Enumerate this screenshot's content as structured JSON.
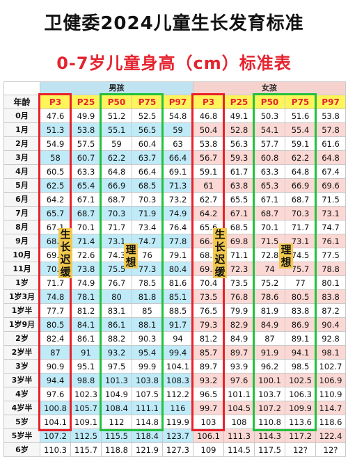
{
  "title_line1": "卫健委2024儿童生长发育标准",
  "title_line2": "0-7岁儿童身高（cm）标准表",
  "table": {
    "age_header": "年龄",
    "boys_label": "男孩",
    "girls_label": "女孩",
    "percentile_headers": [
      "P3",
      "P25",
      "P50",
      "P75",
      "P97"
    ],
    "rows": [
      {
        "age": "0月",
        "boys": [
          "47.6",
          "49.9",
          "51.2",
          "52.5",
          "54.8"
        ],
        "girls": [
          "46.8",
          "49.1",
          "50.3",
          "51.6",
          "53.8"
        ]
      },
      {
        "age": "1月",
        "boys": [
          "51.3",
          "53.8",
          "55.1",
          "56.5",
          "59"
        ],
        "girls": [
          "50.4",
          "52.8",
          "54.1",
          "55.4",
          "57.8"
        ]
      },
      {
        "age": "2月",
        "boys": [
          "54.9",
          "57.5",
          "59",
          "60.4",
          "63"
        ],
        "girls": [
          "53.8",
          "56.3",
          "57.7",
          "59.1",
          "61.6"
        ]
      },
      {
        "age": "3月",
        "boys": [
          "58",
          "60.7",
          "62.2",
          "63.7",
          "66.4"
        ],
        "girls": [
          "56.7",
          "59.3",
          "60.8",
          "62.2",
          "64.8"
        ]
      },
      {
        "age": "4月",
        "boys": [
          "60.5",
          "63.3",
          "64.8",
          "66.4",
          "69.1"
        ],
        "girls": [
          "59.1",
          "61.7",
          "63.3",
          "64.8",
          "67.4"
        ]
      },
      {
        "age": "5月",
        "boys": [
          "62.5",
          "65.4",
          "66.9",
          "68.5",
          "71.3"
        ],
        "girls": [
          "61",
          "63.8",
          "65.3",
          "66.9",
          "69.6"
        ]
      },
      {
        "age": "6月",
        "boys": [
          "64.2",
          "67.1",
          "68.7",
          "70.3",
          "73.2"
        ],
        "girls": [
          "62.7",
          "65.5",
          "67.1",
          "68.7",
          "71.5"
        ]
      },
      {
        "age": "7月",
        "boys": [
          "65.7",
          "68.7",
          "70.3",
          "71.9",
          "74.9"
        ],
        "girls": [
          "64.2",
          "67.1",
          "68.7",
          "70.3",
          "73.1"
        ]
      },
      {
        "age": "8月",
        "boys": [
          "67.1",
          "70.1",
          "71.7",
          "73.4",
          "76.4"
        ],
        "girls": [
          "65.6",
          "68.5",
          "70.1",
          "71.7",
          "74.7"
        ]
      },
      {
        "age": "9月",
        "boys": [
          "68.3",
          "71.4",
          "73.1",
          "74.7",
          "77.8"
        ],
        "girls": [
          "66.8",
          "69.8",
          "71.5",
          "73.1",
          "76.1"
        ]
      },
      {
        "age": "10月",
        "boys": [
          "69.5",
          "72.6",
          "74.3",
          "76",
          "79.1"
        ],
        "girls": [
          "68.1",
          "71.1",
          "72.8",
          "74.5",
          "77.5"
        ]
      },
      {
        "age": "11月",
        "boys": [
          "70.7",
          "73.8",
          "75.5",
          "77.3",
          "80.4"
        ],
        "girls": [
          "69.2",
          "72.3",
          "74",
          "75.7",
          "78.8"
        ]
      },
      {
        "age": "1岁",
        "boys": [
          "71.7",
          "74.9",
          "76.7",
          "78.5",
          "81.6"
        ],
        "girls": [
          "70.4",
          "73.5",
          "75.2",
          "77",
          "80.1"
        ]
      },
      {
        "age": "1岁3月",
        "boys": [
          "74.8",
          "78.1",
          "80",
          "81.8",
          "85.1"
        ],
        "girls": [
          "73.5",
          "76.8",
          "78.6",
          "80.5",
          "83.8"
        ]
      },
      {
        "age": "1岁半",
        "boys": [
          "77.7",
          "81.2",
          "83.1",
          "85",
          "88.5"
        ],
        "girls": [
          "76.5",
          "79.9",
          "81.9",
          "83.8",
          "87.2"
        ]
      },
      {
        "age": "1岁9月",
        "boys": [
          "80.5",
          "84.1",
          "86.1",
          "88.1",
          "91.7"
        ],
        "girls": [
          "79.3",
          "82.9",
          "84.9",
          "86.9",
          "90.4"
        ]
      },
      {
        "age": "2岁",
        "boys": [
          "82.4",
          "86.1",
          "88.2",
          "90.3",
          "94"
        ],
        "girls": [
          "81.2",
          "84.9",
          "87",
          "89.1",
          "92.8"
        ]
      },
      {
        "age": "2岁半",
        "boys": [
          "87",
          "91",
          "93.2",
          "95.4",
          "99.4"
        ],
        "girls": [
          "85.7",
          "89.7",
          "91.9",
          "94.1",
          "98.1"
        ]
      },
      {
        "age": "3岁",
        "boys": [
          "90.9",
          "95.1",
          "97.5",
          "99.9",
          "104.1"
        ],
        "girls": [
          "89.7",
          "93.9",
          "96.2",
          "98.5",
          "102.7"
        ]
      },
      {
        "age": "3岁半",
        "boys": [
          "94.4",
          "98.8",
          "101.3",
          "103.8",
          "108.3"
        ],
        "girls": [
          "93.2",
          "97.6",
          "100.1",
          "102.5",
          "106.9"
        ]
      },
      {
        "age": "4岁",
        "boys": [
          "97.6",
          "102.3",
          "104.9",
          "107.5",
          "112.2"
        ],
        "girls": [
          "96.5",
          "101.1",
          "103.7",
          "106.3",
          "110.9"
        ]
      },
      {
        "age": "4岁半",
        "boys": [
          "100.8",
          "105.7",
          "108.4",
          "111.1",
          "116"
        ],
        "girls": [
          "99.7",
          "104.5",
          "107.2",
          "109.9",
          "114.7"
        ]
      },
      {
        "age": "5岁",
        "boys": [
          "104.1",
          "109.1",
          "112",
          "114.8",
          "119.9"
        ],
        "girls": [
          "103",
          "108",
          "110.8",
          "113.6",
          "118.6"
        ]
      },
      {
        "age": "5岁半",
        "boys": [
          "107.2",
          "112.5",
          "115.5",
          "118.4",
          "123.7"
        ],
        "girls": [
          "106.1",
          "111.3",
          "114.3",
          "117.2",
          "122.4"
        ]
      },
      {
        "age": "6岁",
        "boys": [
          "110.3",
          "115.7",
          "118.8",
          "121.9",
          "127.3"
        ],
        "girls": [
          "109",
          "114.5",
          "117.5",
          "12?",
          "12?"
        ]
      }
    ]
  },
  "annotations": {
    "slow_label_chars": [
      "生",
      "长",
      "迟",
      "缓"
    ],
    "ideal_label_chars": [
      "理",
      "想"
    ]
  },
  "colors": {
    "title_red": "#e5232f",
    "boys_band": "#bfeaf8",
    "girls_band": "#fbd8d4",
    "header_yellow": "#fff45a",
    "frame_red": "#e8202a",
    "frame_green": "#20c13c"
  }
}
